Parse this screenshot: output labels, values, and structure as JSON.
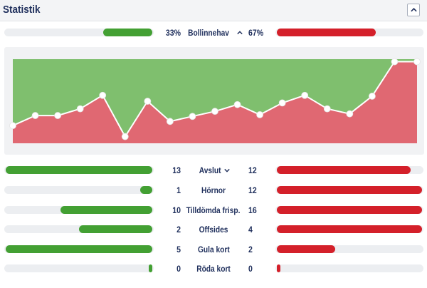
{
  "header": {
    "title": "Statistik"
  },
  "possession": {
    "label": "Bollinnehav",
    "home": "33%",
    "away": "67%",
    "home_value": 33,
    "away_value": 67
  },
  "stats": [
    {
      "key": "shots",
      "label": "Avslut",
      "home": "13",
      "away": "12",
      "home_value": 13,
      "away_value": 12,
      "max": 13,
      "expandable": true
    },
    {
      "key": "corners",
      "label": "Hörnor",
      "home": "1",
      "away": "12",
      "home_value": 1,
      "away_value": 12,
      "max": 12,
      "expandable": false
    },
    {
      "key": "free-kicks",
      "label": "Tilldömda frisp.",
      "home": "10",
      "away": "16",
      "home_value": 10,
      "away_value": 16,
      "max": 16,
      "expandable": false
    },
    {
      "key": "offsides",
      "label": "Offsides",
      "home": "2",
      "away": "4",
      "home_value": 2,
      "away_value": 4,
      "max": 4,
      "expandable": false
    },
    {
      "key": "yellow-cards",
      "label": "Gula kort",
      "home": "5",
      "away": "2",
      "home_value": 5,
      "away_value": 2,
      "max": 5,
      "expandable": false
    },
    {
      "key": "red-cards",
      "label": "Röda kort",
      "home": "0",
      "away": "0",
      "home_value": 0,
      "away_value": 0,
      "max": 5,
      "expandable": false
    }
  ],
  "colors": {
    "home": "#43a033",
    "away": "#d4202a",
    "home_area": "#7fbf6e",
    "away_area": "#e06872"
  },
  "icons": {
    "collapse": "chevron-up-icon",
    "possession_toggle": "chevron-up-icon",
    "shots_toggle": "chevron-down-icon"
  },
  "chart_data": {
    "type": "area",
    "x": [
      1,
      2,
      3,
      4,
      5,
      6,
      7,
      8,
      9,
      10,
      11,
      12,
      13,
      14,
      15,
      16,
      17,
      18,
      19
    ],
    "series": [
      {
        "values": [
          0.21,
          0.33,
          0.33,
          0.41,
          0.57,
          0.08,
          0.5,
          0.26,
          0.32,
          0.38,
          0.46,
          0.34,
          0.48,
          0.57,
          0.41,
          0.35,
          0.56,
          0.97,
          0.97
        ]
      }
    ],
    "ylim": [
      0,
      1
    ],
    "title": "",
    "xlabel": "",
    "ylabel": ""
  }
}
